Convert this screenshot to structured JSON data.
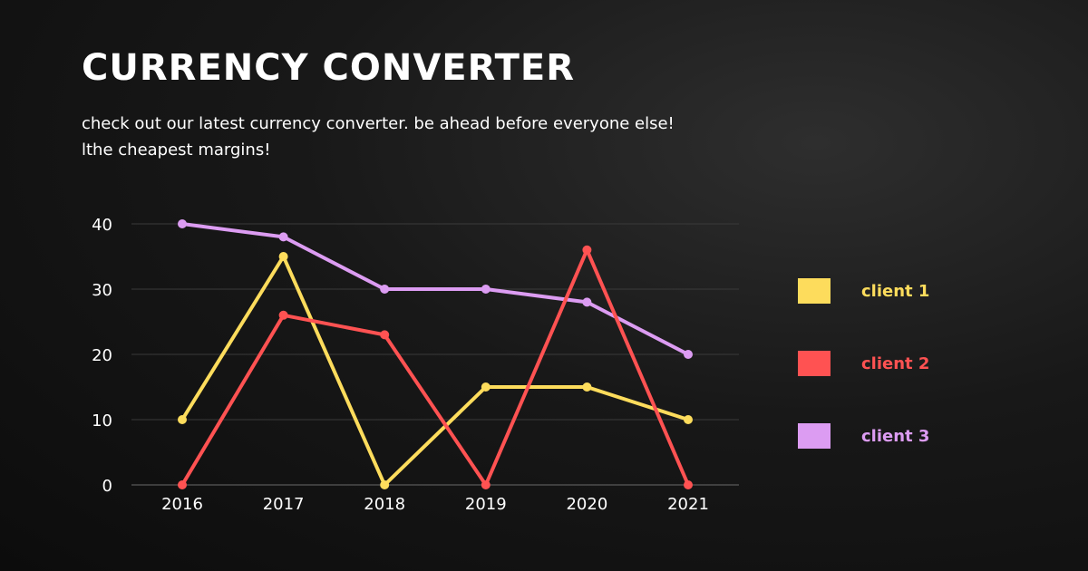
{
  "header": {
    "title": "CURRENCY CONVERTER",
    "subtitle_line1": "check out our latest currency converter. be ahead before everyone else!",
    "subtitle_line2": "lthe cheapest margins!"
  },
  "chart_data": {
    "type": "line",
    "title": "",
    "xlabel": "",
    "ylabel": "",
    "categories": [
      "2016",
      "2017",
      "2018",
      "2019",
      "2020",
      "2021"
    ],
    "yticks": [
      0,
      10,
      20,
      30,
      40
    ],
    "ylim": [
      0,
      40
    ],
    "grid": true,
    "legend_position": "right",
    "series": [
      {
        "name": "client 1",
        "color": "#fddc5c",
        "values": [
          10,
          35,
          0,
          15,
          15,
          10
        ]
      },
      {
        "name": "client 2",
        "color": "#ff5252",
        "values": [
          0,
          26,
          23,
          0,
          36,
          0
        ]
      },
      {
        "name": "client 3",
        "color": "#dc9cf2",
        "values": [
          40,
          38,
          30,
          30,
          28,
          20
        ]
      }
    ]
  }
}
